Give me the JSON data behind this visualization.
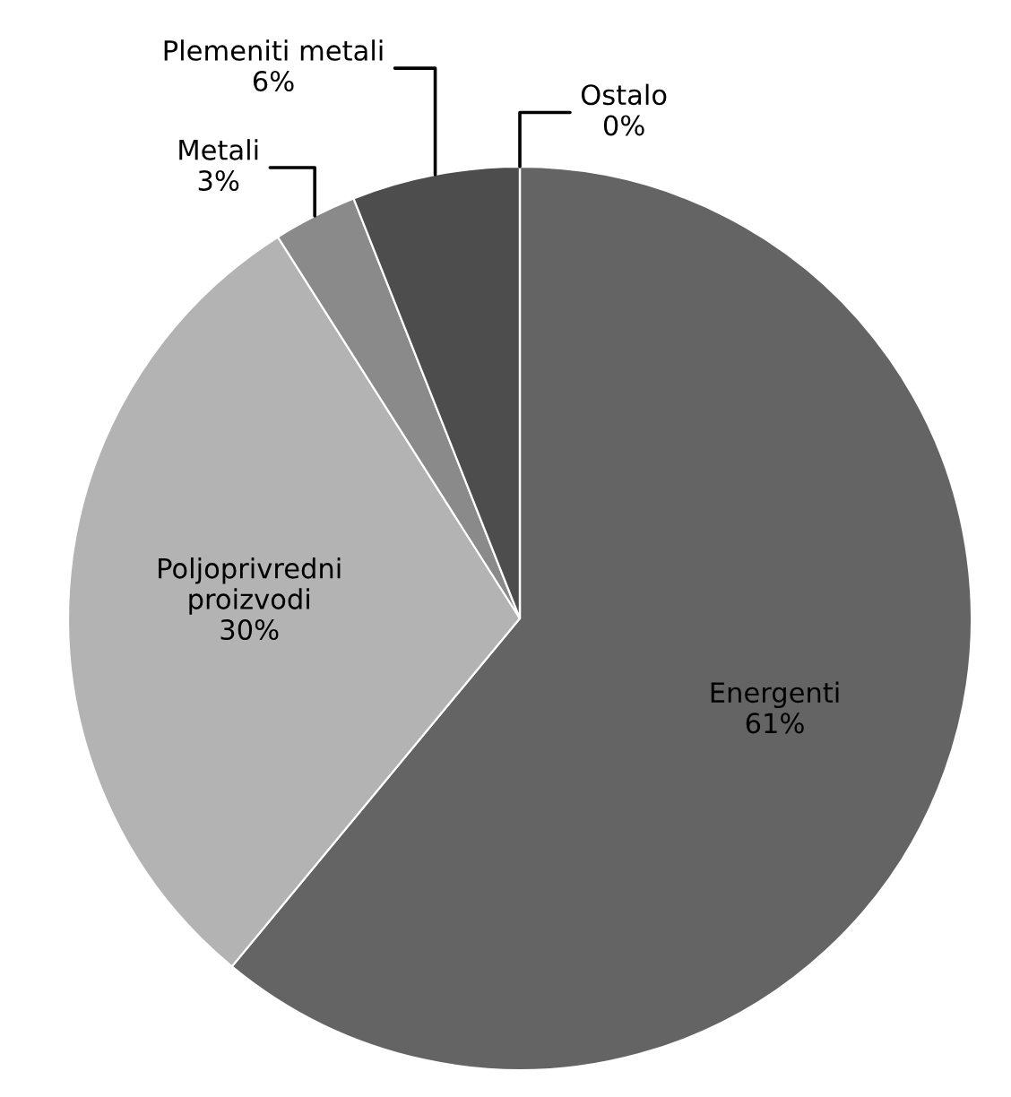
{
  "chart_data": {
    "type": "pie",
    "categories": [
      "Energenti",
      "Poljoprivredni\nproizvodi",
      "Metali",
      "Plemeniti metali",
      "Ostalo"
    ],
    "values": [
      61,
      30,
      3,
      6,
      0
    ],
    "colors": [
      "#646464",
      "#b3b3b3",
      "#8a8a8a",
      "#4d4d4d",
      "#3a3a3a"
    ],
    "value_labels": [
      "61%",
      "30%",
      "3%",
      "6%",
      "0%"
    ],
    "legend": false
  }
}
